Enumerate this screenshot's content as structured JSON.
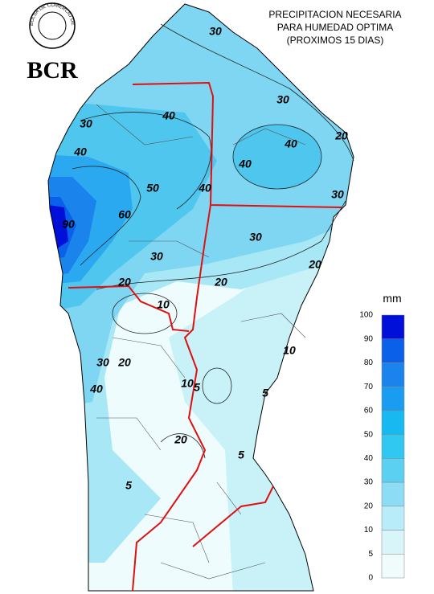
{
  "header": {
    "logo_text": "BCR",
    "seal_text": "BOLSA DE COMERCIO DE ROSARIO",
    "title_lines": [
      "PRECIPITACION NECESARIA",
      "PARA HUMEDAD OPTIMA",
      "(PROXIMOS 15 DIAS)"
    ]
  },
  "contour_labels": [
    30,
    30,
    40,
    30,
    20,
    40,
    40,
    40,
    50,
    40,
    30,
    60,
    90,
    30,
    30,
    20,
    20,
    20,
    10,
    10,
    20,
    30,
    5,
    10,
    40,
    5,
    20,
    5,
    5
  ],
  "legend": {
    "title": "mm",
    "levels": [
      100,
      90,
      80,
      70,
      60,
      50,
      40,
      30,
      20,
      10,
      5,
      0
    ],
    "colors": [
      "#0010d8",
      "#0a60e8",
      "#1a84ec",
      "#1a9cf0",
      "#18b8f0",
      "#30c8f0",
      "#5cd0f0",
      "#8cdcf4",
      "#b8ecf8",
      "#d8f6fa",
      "#f0fcfc"
    ]
  }
}
